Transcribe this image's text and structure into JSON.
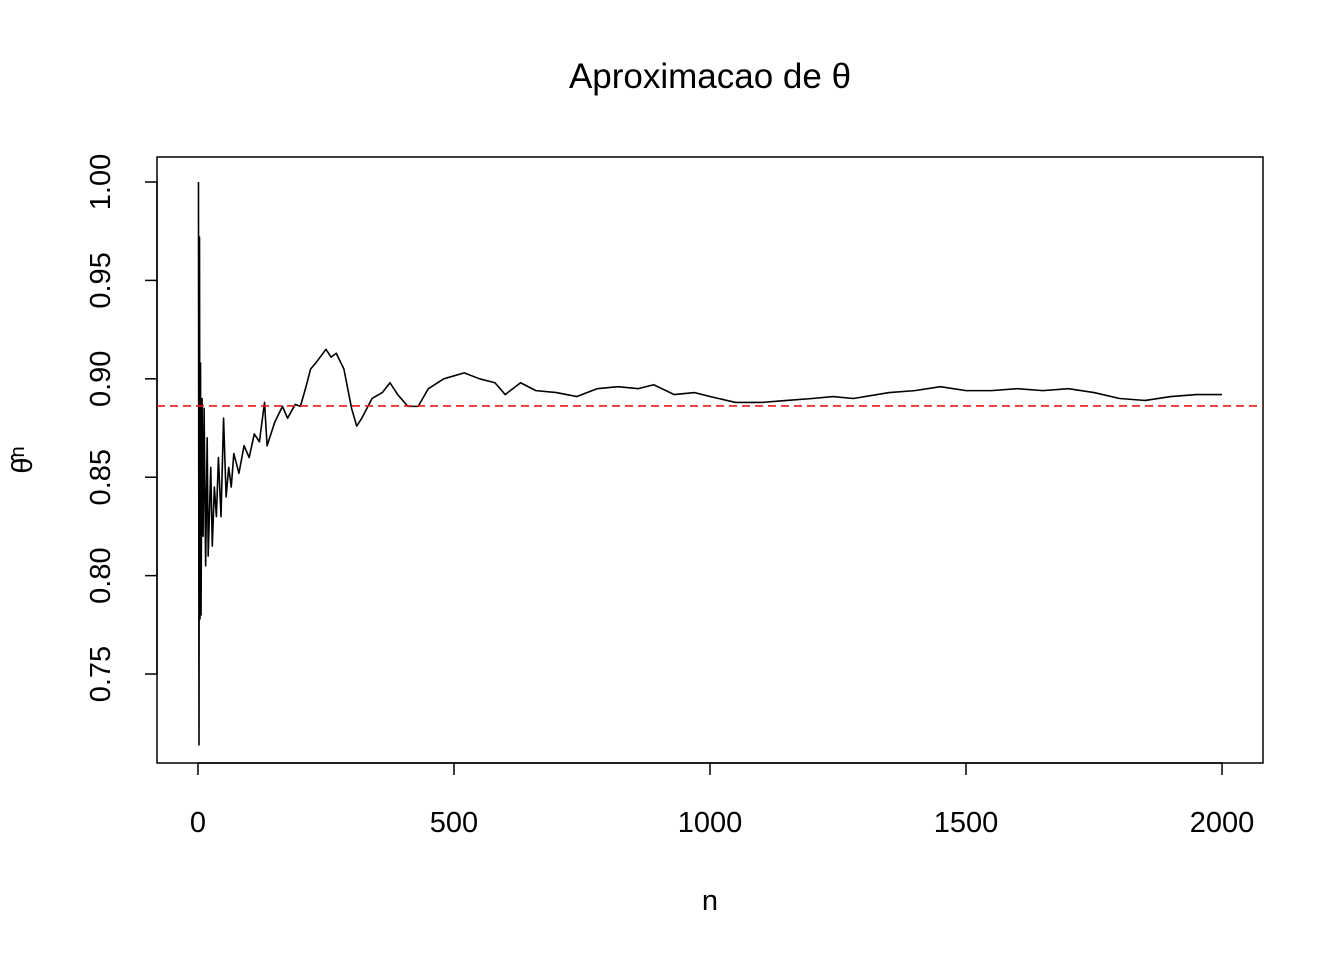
{
  "chart_data": {
    "type": "line",
    "title": "Aproximacao de θ",
    "x_label": "n",
    "y_label": {
      "symbol": "θ̂",
      "subscript": "n"
    },
    "x": [
      1,
      2,
      3,
      4,
      5,
      6,
      8,
      10,
      12,
      15,
      18,
      20,
      25,
      28,
      32,
      36,
      40,
      45,
      50,
      55,
      60,
      65,
      70,
      80,
      90,
      100,
      110,
      120,
      130,
      135,
      150,
      165,
      175,
      190,
      200,
      210,
      220,
      230,
      250,
      260,
      270,
      285,
      300,
      310,
      320,
      340,
      360,
      375,
      390,
      410,
      430,
      450,
      480,
      520,
      550,
      580,
      600,
      630,
      660,
      700,
      740,
      780,
      820,
      860,
      890,
      930,
      970,
      1000,
      1050,
      1100,
      1150,
      1200,
      1240,
      1280,
      1350,
      1400,
      1450,
      1500,
      1550,
      1600,
      1650,
      1700,
      1750,
      1800,
      1850,
      1900,
      1950,
      2000
    ],
    "series": [
      {
        "name": "theta_n",
        "color": "#000000",
        "values": [
          1.0,
          0.714,
          0.972,
          0.778,
          0.908,
          0.78,
          0.89,
          0.82,
          0.885,
          0.805,
          0.87,
          0.81,
          0.855,
          0.815,
          0.845,
          0.83,
          0.86,
          0.83,
          0.88,
          0.84,
          0.855,
          0.845,
          0.862,
          0.852,
          0.866,
          0.86,
          0.872,
          0.868,
          0.888,
          0.866,
          0.878,
          0.886,
          0.88,
          0.887,
          0.886,
          0.895,
          0.905,
          0.908,
          0.915,
          0.911,
          0.913,
          0.905,
          0.885,
          0.876,
          0.88,
          0.89,
          0.893,
          0.898,
          0.892,
          0.886,
          0.886,
          0.895,
          0.9,
          0.903,
          0.9,
          0.898,
          0.892,
          0.898,
          0.894,
          0.893,
          0.891,
          0.895,
          0.896,
          0.895,
          0.897,
          0.892,
          0.893,
          0.891,
          0.888,
          0.888,
          0.889,
          0.89,
          0.891,
          0.89,
          0.893,
          0.894,
          0.896,
          0.894,
          0.894,
          0.895,
          0.894,
          0.895,
          0.893,
          0.89,
          0.889,
          0.891,
          0.892,
          0.892
        ]
      }
    ],
    "hline": {
      "value": 0.8862,
      "color": "#e31a1c",
      "dashed": true
    },
    "xlim": [
      -80,
      2080
    ],
    "ylim": [
      0.7048,
      1.0127
    ],
    "xticks": [
      0,
      500,
      1000,
      1500,
      2000
    ],
    "yticks": [
      0.75,
      {
        "value": 0.8,
        "label": "0.80"
      },
      0.85,
      {
        "value": 0.9,
        "label": "0.90"
      },
      0.95,
      {
        "value": 1.0,
        "label": "1.00"
      }
    ]
  }
}
